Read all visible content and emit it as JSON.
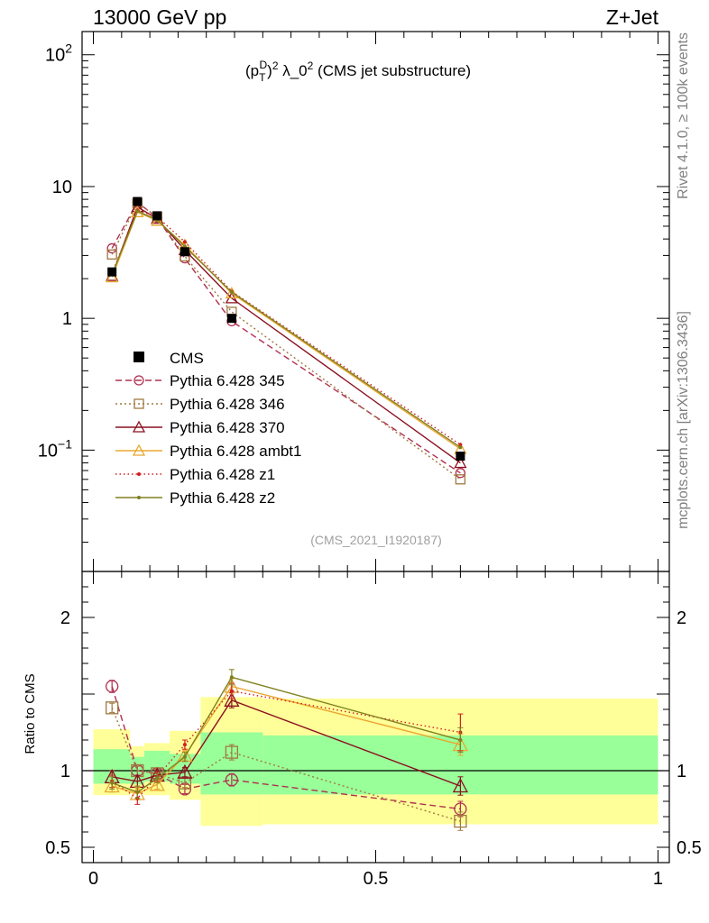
{
  "chart_data": {
    "type": "line",
    "header_left": "13000 GeV pp",
    "header_right": "Z+Jet",
    "title": "(p_T^D)^2 λ_0^2 (CMS jet substructure)",
    "title_parts": {
      "p": "(p",
      "sub": "T",
      "sup": "D",
      "close": ")",
      "sq": "2",
      "lambda": " λ_0",
      "sq2": "2",
      "rest": " (CMS jet substructure)"
    },
    "analysis_id": "(CMS_2021_I1920187)",
    "side_label_top": "Rivet 4.1.0, ≥ 100k events",
    "side_label_bottom": "mcplots.cern.ch [arXiv:1306.3436]",
    "ylabel_ratio": "Ratio to CMS",
    "main_y_ticks": [
      {
        "value": 0.1,
        "base": "10",
        "exp": "−1"
      },
      {
        "value": 1,
        "label": "1"
      },
      {
        "value": 10,
        "label": "10"
      },
      {
        "value": 100,
        "base": "10",
        "exp": "2"
      }
    ],
    "ratio_y_ticks": [
      {
        "value": 0.5,
        "label": "0.5"
      },
      {
        "value": 1,
        "label": "1"
      },
      {
        "value": 2,
        "label": "2"
      }
    ],
    "x_ticks": [
      {
        "value": 0,
        "label": "0"
      },
      {
        "value": 0.5,
        "label": "0.5"
      },
      {
        "value": 1,
        "label": "1"
      }
    ],
    "xlim": [
      -0.02,
      1.02
    ],
    "ylim_main": [
      0.012,
      150
    ],
    "ylim_ratio": [
      0.4,
      2.3
    ],
    "bin_edges": [
      0,
      0.065,
      0.09,
      0.135,
      0.19,
      0.3,
      1.0
    ],
    "x": [
      0.033,
      0.078,
      0.113,
      0.162,
      0.245,
      0.65
    ],
    "data": {
      "name": "CMS",
      "values": [
        2.25,
        7.7,
        6.0,
        3.2,
        1.0,
        0.09
      ],
      "band_stat": [
        [
          0.915,
          1.14
        ],
        [
          0.91,
          1.09
        ],
        [
          0.93,
          1.13
        ],
        [
          0.915,
          1.11
        ],
        [
          0.845,
          1.25
        ],
        [
          0.845,
          1.23
        ]
      ],
      "band_total": [
        [
          0.84,
          1.27
        ],
        [
          0.85,
          1.16
        ],
        [
          0.84,
          1.18
        ],
        [
          0.81,
          1.26
        ],
        [
          0.64,
          1.48
        ],
        [
          0.65,
          1.47
        ]
      ]
    },
    "series": [
      {
        "name": "Pythia 6.428 345",
        "color": "#b03050",
        "marker": "circle",
        "dash": "7,4",
        "values": [
          3.4,
          7.6,
          5.8,
          2.85,
          0.95,
          0.067
        ],
        "ratio": [
          1.55,
          1.0,
          0.98,
          0.88,
          0.94,
          0.75
        ],
        "ratio_err": [
          0.04,
          0.03,
          0.03,
          0.03,
          0.04,
          0.05
        ]
      },
      {
        "name": "Pythia 6.428 346",
        "color": "#a07840",
        "marker": "square",
        "dash": "2,3",
        "values": [
          3.05,
          7.5,
          5.9,
          2.95,
          1.12,
          0.06
        ],
        "ratio": [
          1.41,
          1.0,
          0.98,
          0.92,
          1.12,
          0.67
        ],
        "ratio_err": [
          0.03,
          0.03,
          0.03,
          0.03,
          0.05,
          0.06
        ]
      },
      {
        "name": "Pythia 6.428 370",
        "color": "#8a1020",
        "marker": "triangle",
        "dash": "",
        "values": [
          2.1,
          7.0,
          5.7,
          3.3,
          1.42,
          0.08
        ],
        "ratio": [
          0.96,
          0.93,
          0.97,
          0.99,
          1.46,
          0.9
        ],
        "ratio_err": [
          0.04,
          0.04,
          0.03,
          0.03,
          0.05,
          0.06
        ]
      },
      {
        "name": "Pythia 6.428 ambt1",
        "color": "#e8a830",
        "marker": "triangle",
        "dash": "",
        "values": [
          2.05,
          6.4,
          5.5,
          3.6,
          1.55,
          0.102
        ],
        "ratio": [
          0.9,
          0.85,
          0.91,
          1.1,
          1.55,
          1.17
        ],
        "ratio_err": [
          0.04,
          0.04,
          0.03,
          0.03,
          0.05,
          0.07
        ]
      },
      {
        "name": "Pythia 6.428 z1",
        "color": "#d02020",
        "marker": "dot",
        "dash": "1.5,3",
        "values": [
          2.2,
          6.6,
          5.9,
          3.8,
          1.6,
          0.11
        ],
        "ratio": [
          0.93,
          0.82,
          0.96,
          1.17,
          1.52,
          1.25
        ],
        "ratio_err": [
          0.04,
          0.04,
          0.03,
          0.03,
          0.05,
          0.12
        ]
      },
      {
        "name": "Pythia 6.428 z2",
        "color": "#808020",
        "marker": "dot",
        "dash": "",
        "values": [
          2.15,
          6.5,
          5.6,
          3.5,
          1.58,
          0.105
        ],
        "ratio": [
          0.92,
          0.86,
          0.95,
          1.09,
          1.61,
          1.2
        ],
        "ratio_err": [
          0.04,
          0.04,
          0.03,
          0.03,
          0.05,
          0.08
        ]
      }
    ],
    "legend_position": "bottom-left"
  }
}
